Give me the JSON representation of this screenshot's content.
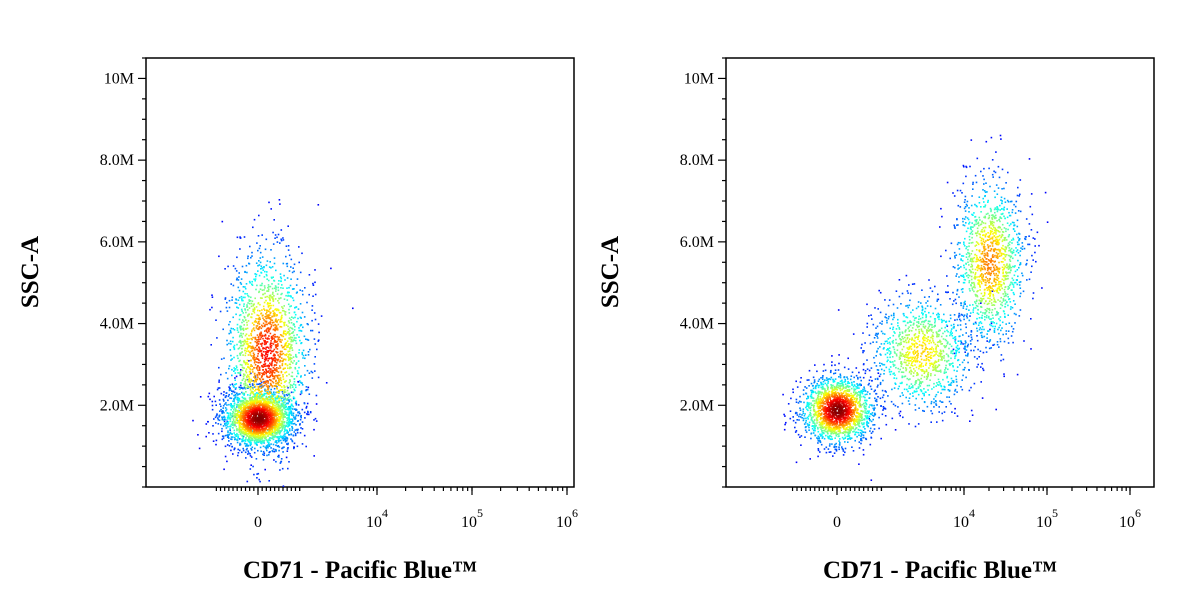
{
  "chart_data": [
    {
      "type": "scatter",
      "title": "",
      "xlabel": "CD71 - Pacific Blue™",
      "ylabel": "SSC-A",
      "x_scale": "biexponential",
      "y_scale": "linear",
      "ylim": [
        0,
        10.5
      ],
      "y_ticks": [
        {
          "value": 2,
          "label": "2.0M"
        },
        {
          "value": 4,
          "label": "4.0M"
        },
        {
          "value": 6,
          "label": "6.0M"
        },
        {
          "value": 8,
          "label": "8.0M"
        },
        {
          "value": 10,
          "label": "10M"
        }
      ],
      "x_ticks": [
        {
          "value": 0,
          "label": "0"
        },
        {
          "value": 10000,
          "label_base": "10",
          "label_exp": "4"
        },
        {
          "value": 100000,
          "label_base": "10",
          "label_exp": "5"
        },
        {
          "value": 1000000,
          "label_base": "10",
          "label_exp": "6"
        }
      ],
      "density_colormap": "jet",
      "populations": [
        {
          "x_center": 0,
          "y_center": 1.7,
          "x_spread": 0.35,
          "y_spread": 0.35,
          "weight": 0.55
        },
        {
          "x_center": 200,
          "y_center": 3.3,
          "x_spread": 0.4,
          "y_spread": 1.2,
          "weight": 0.45
        }
      ]
    },
    {
      "type": "scatter",
      "title": "",
      "xlabel": "CD71 - Pacific Blue™",
      "ylabel": "SSC-A",
      "x_scale": "biexponential",
      "y_scale": "linear",
      "ylim": [
        0,
        10.5
      ],
      "y_ticks": [
        {
          "value": 2,
          "label": "2.0M"
        },
        {
          "value": 4,
          "label": "4.0M"
        },
        {
          "value": 6,
          "label": "6.0M"
        },
        {
          "value": 8,
          "label": "8.0M"
        },
        {
          "value": 10,
          "label": "10M"
        }
      ],
      "x_ticks": [
        {
          "value": 0,
          "label": "0"
        },
        {
          "value": 10000,
          "label_base": "10",
          "label_exp": "4"
        },
        {
          "value": 100000,
          "label_base": "10",
          "label_exp": "5"
        },
        {
          "value": 1000000,
          "label_base": "10",
          "label_exp": "6"
        }
      ],
      "density_colormap": "jet",
      "populations": [
        {
          "x_center": 0,
          "y_center": 1.9,
          "x_spread": 0.35,
          "y_spread": 0.4,
          "weight": 0.45
        },
        {
          "x_center": 3000,
          "y_center": 3.3,
          "x_spread": 0.5,
          "y_spread": 0.7,
          "weight": 0.25
        },
        {
          "x_center": 20000,
          "y_center": 5.5,
          "x_spread": 0.35,
          "y_spread": 1.0,
          "weight": 0.3
        }
      ]
    }
  ]
}
